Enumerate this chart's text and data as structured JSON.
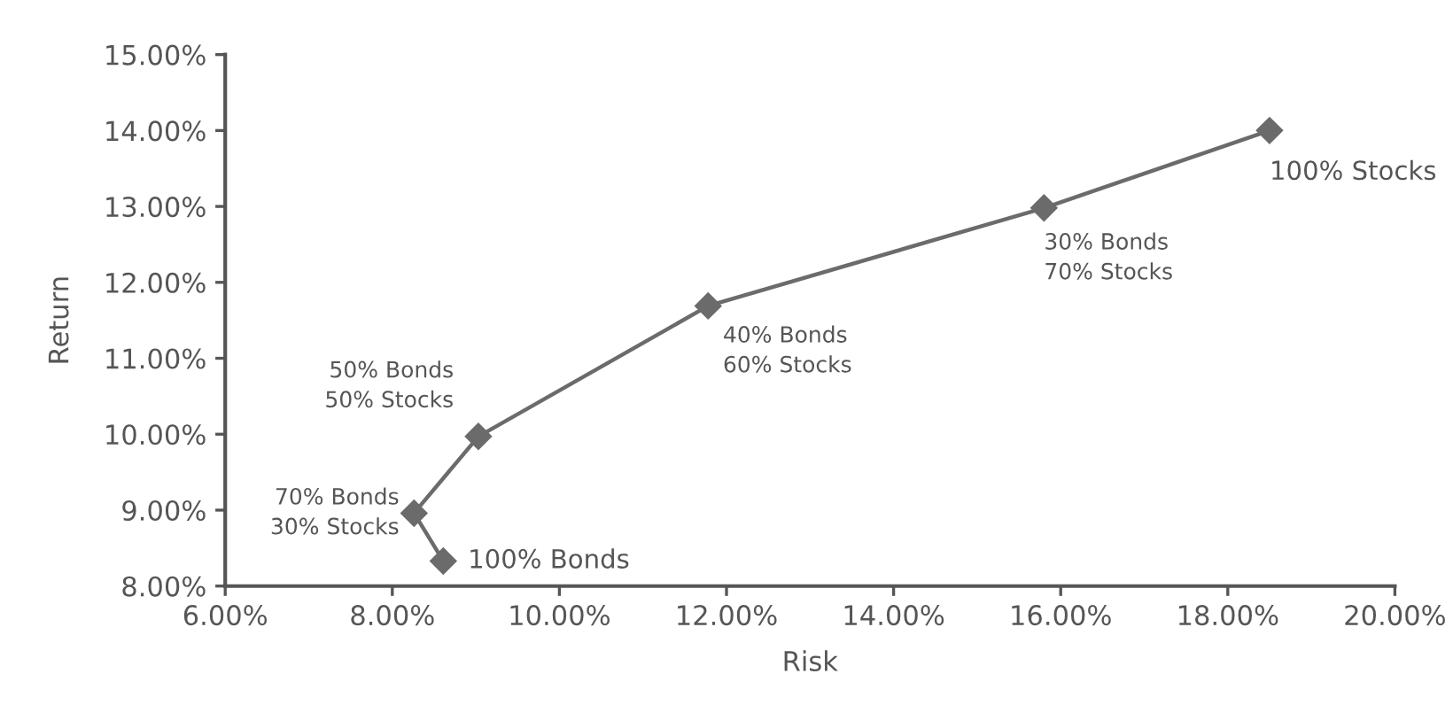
{
  "chart_data": {
    "type": "line",
    "xlabel": "Risk",
    "ylabel": "Return",
    "x": [
      8.61,
      8.26,
      9.03,
      11.78,
      15.8,
      18.5
    ],
    "series": [
      {
        "color": "#6b6b6b",
        "values": [
          8.33,
          8.96,
          9.97,
          11.69,
          12.98,
          14.0
        ]
      }
    ],
    "marker": "diamond",
    "line_style": "solid",
    "grid": false,
    "xlim": [
      6,
      20
    ],
    "ylim": [
      8,
      15
    ],
    "xticks": [
      {
        "value": 6,
        "label": "6.00%"
      },
      {
        "value": 8,
        "label": "8.00%"
      },
      {
        "value": 10,
        "label": "10.00%"
      },
      {
        "value": 12,
        "label": "12.00%"
      },
      {
        "value": 14,
        "label": "14.00%"
      },
      {
        "value": 16,
        "label": "16.00%"
      },
      {
        "value": 18,
        "label": "18.00%"
      },
      {
        "value": 20,
        "label": "20.00%"
      }
    ],
    "yticks": [
      {
        "value": 8,
        "label": "8.00%"
      },
      {
        "value": 9,
        "label": "9.00%"
      },
      {
        "value": 10,
        "label": "10.00%"
      },
      {
        "value": 11,
        "label": "11.00%"
      },
      {
        "value": 12,
        "label": "12.00%"
      },
      {
        "value": 13,
        "label": "13.00%"
      },
      {
        "value": 14,
        "label": "14.00%"
      },
      {
        "value": 15,
        "label": "15.00%"
      }
    ],
    "annotations": [
      {
        "text": "100% Bonds",
        "x": 8.61,
        "y": 8.33
      },
      {
        "text": "70% Bonds\n30% Stocks",
        "x": 8.26,
        "y": 8.96
      },
      {
        "text": "50% Bonds\n50% Stocks",
        "x": 9.03,
        "y": 9.97
      },
      {
        "text": "40% Bonds\n60% Stocks",
        "x": 11.78,
        "y": 11.69
      },
      {
        "text": "30% Bonds\n70% Stocks",
        "x": 15.8,
        "y": 12.98
      },
      {
        "text": "100% Stocks",
        "x": 18.5,
        "y": 14.0
      }
    ]
  }
}
